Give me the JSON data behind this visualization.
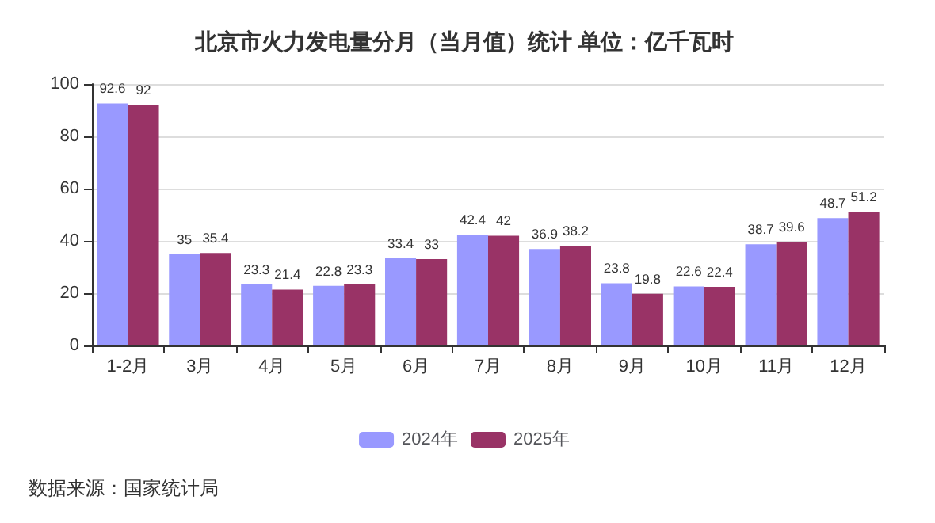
{
  "chart_data": {
    "type": "bar",
    "title": "北京市火力发电量分月（当月值）统计 单位：亿千瓦时",
    "categories": [
      "1-2月",
      "3月",
      "4月",
      "5月",
      "6月",
      "7月",
      "8月",
      "9月",
      "10月",
      "11月",
      "12月"
    ],
    "series": [
      {
        "name": "2024年",
        "color": "#9999ff",
        "values": [
          92.6,
          35,
          23.3,
          22.8,
          33.4,
          42.4,
          36.9,
          23.8,
          22.6,
          38.7,
          48.7
        ]
      },
      {
        "name": "2025年",
        "color": "#993366",
        "values": [
          92,
          35.4,
          21.4,
          23.3,
          33,
          42,
          38.2,
          19.8,
          22.4,
          39.6,
          51.2
        ]
      }
    ],
    "ylim": [
      0,
      100
    ],
    "yticks": [
      0,
      20,
      40,
      60,
      80,
      100
    ],
    "grid": "y",
    "legend": "bottom",
    "data_labels": true,
    "annotations": [
      "数据来源：国家统计局"
    ]
  }
}
